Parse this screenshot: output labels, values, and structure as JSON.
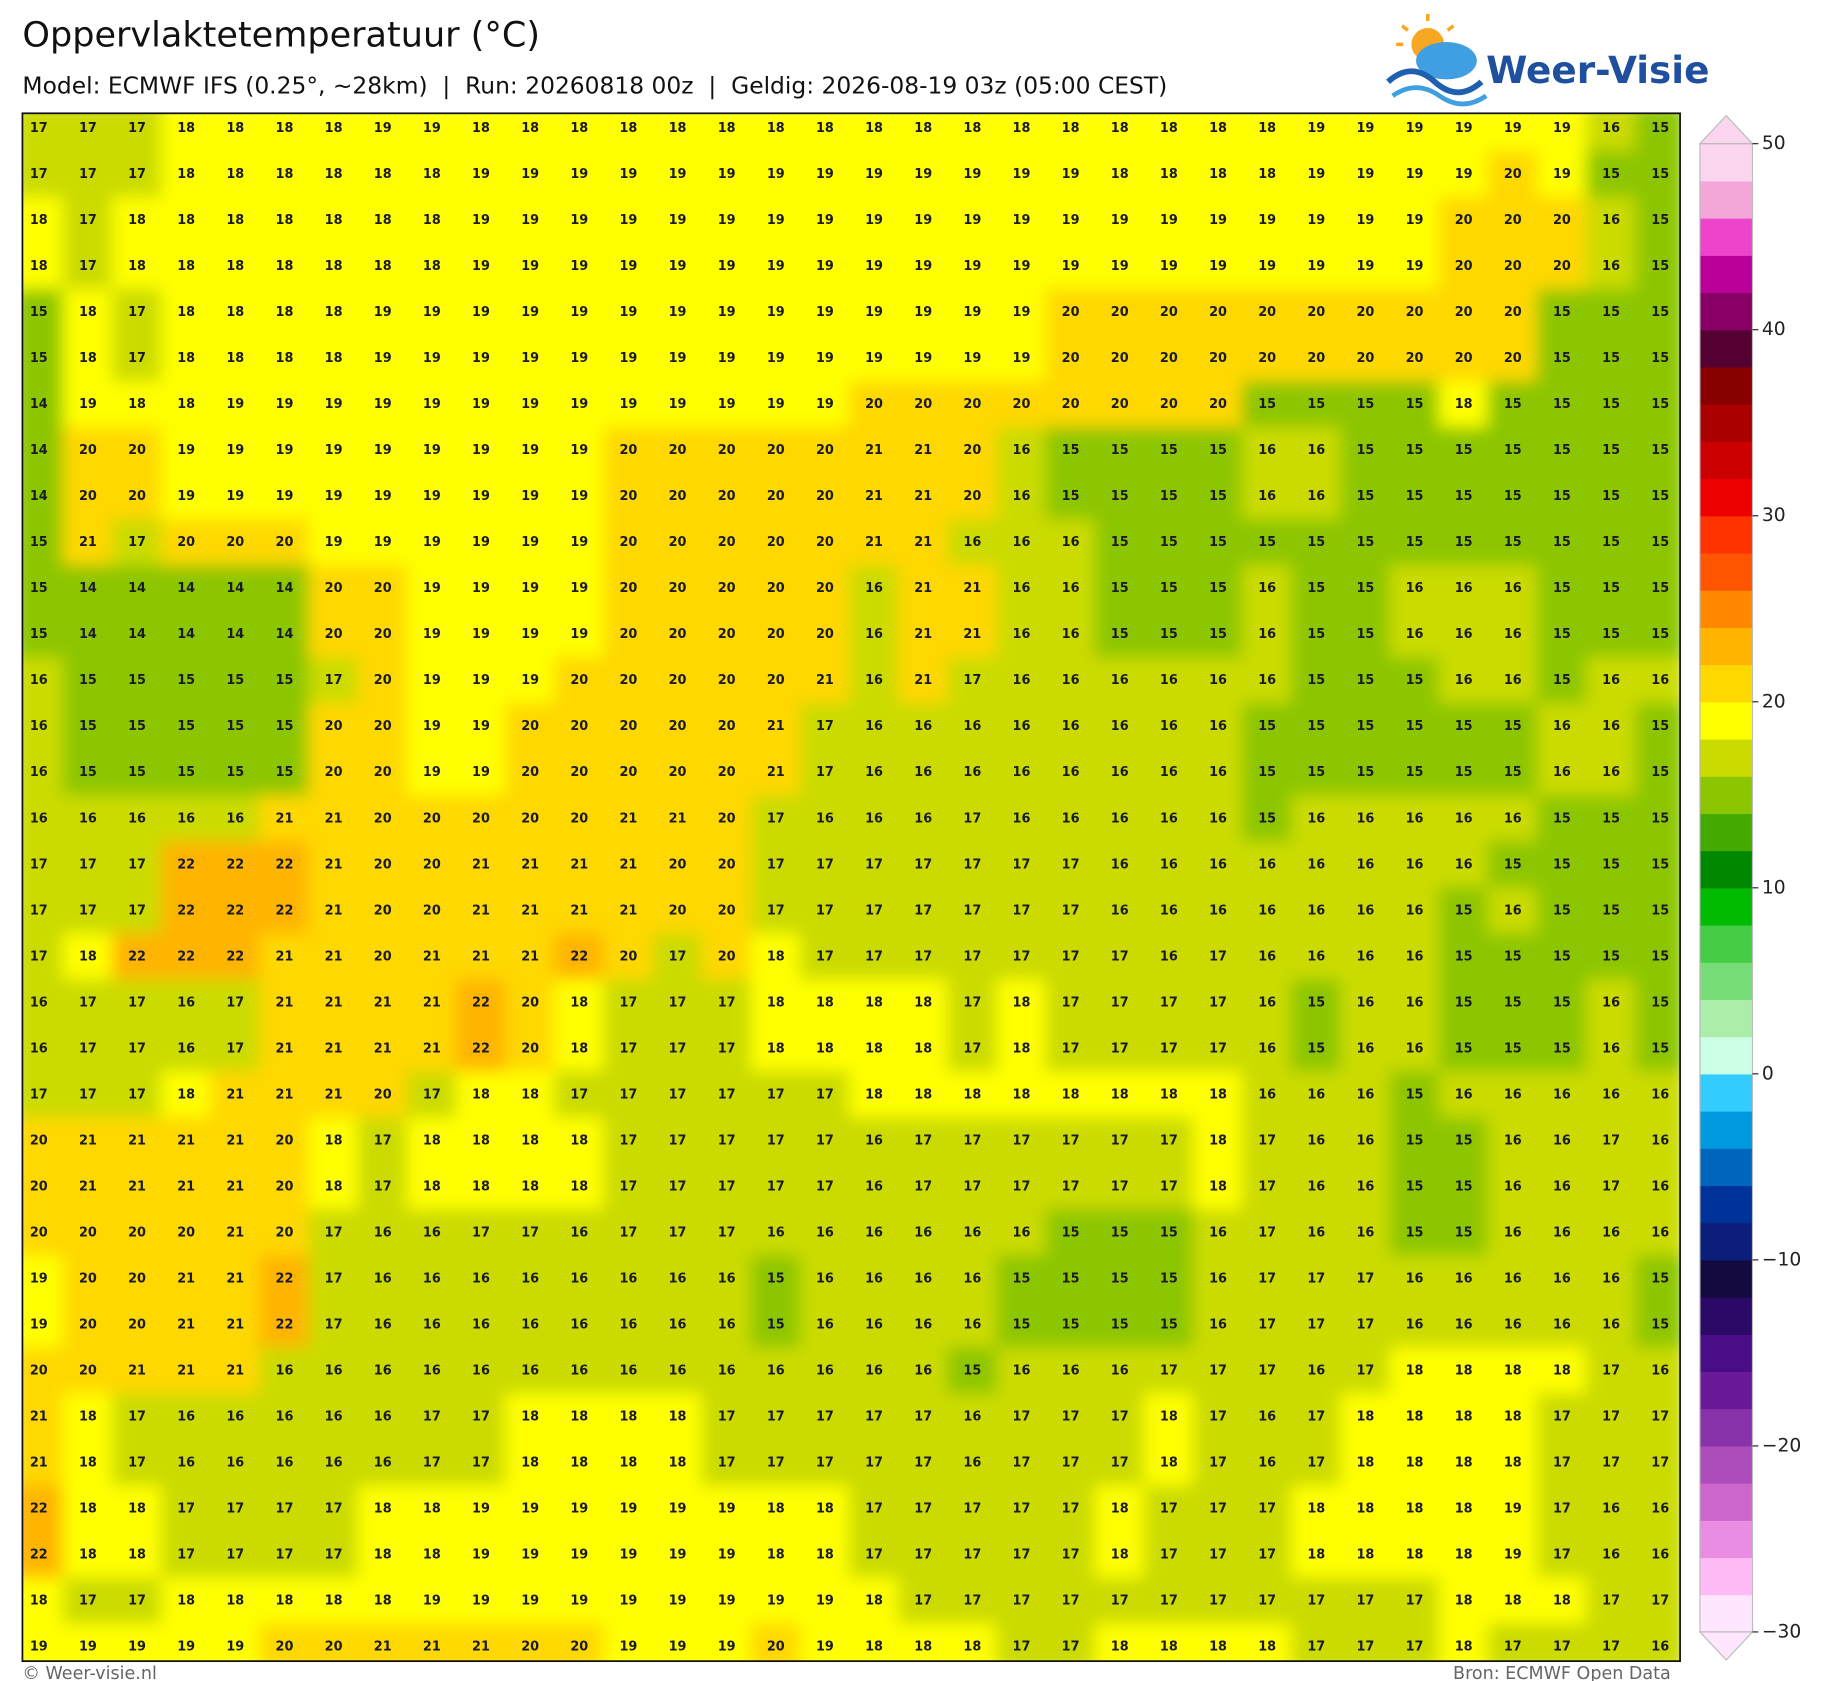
{
  "header": {
    "title": "Oppervlaktetemperatuur (°C)",
    "subtitle": "Model: ECMWF IFS (0.25°, ~28km)  |  Run: 20260818 00z  |  Geldig: 2026-08-19 03z (05:00 CEST)"
  },
  "logo": "Weer-Visie",
  "map": {
    "grid": [
      [
        17,
        17,
        17,
        18,
        18,
        18,
        18,
        19,
        19,
        18,
        18,
        18,
        18,
        18,
        18,
        18,
        18,
        18,
        18,
        18,
        18,
        18,
        18,
        18,
        18,
        18,
        19,
        19,
        19,
        19,
        19,
        19,
        16,
        15
      ],
      [
        17,
        17,
        17,
        18,
        18,
        18,
        18,
        18,
        18,
        19,
        19,
        19,
        19,
        19,
        19,
        19,
        19,
        19,
        19,
        19,
        19,
        19,
        18,
        18,
        18,
        18,
        19,
        19,
        19,
        19,
        20,
        19,
        15,
        15
      ],
      [
        18,
        17,
        18,
        18,
        18,
        18,
        18,
        18,
        18,
        19,
        19,
        19,
        19,
        19,
        19,
        19,
        19,
        19,
        19,
        19,
        19,
        19,
        19,
        19,
        19,
        19,
        19,
        19,
        19,
        20,
        20,
        20,
        16,
        15
      ],
      [
        18,
        17,
        18,
        18,
        18,
        18,
        18,
        18,
        18,
        19,
        19,
        19,
        19,
        19,
        19,
        19,
        19,
        19,
        19,
        19,
        19,
        19,
        19,
        19,
        19,
        19,
        19,
        19,
        19,
        20,
        20,
        20,
        16,
        15
      ],
      [
        15,
        18,
        17,
        18,
        18,
        18,
        18,
        19,
        19,
        19,
        19,
        19,
        19,
        19,
        19,
        19,
        19,
        19,
        19,
        19,
        19,
        20,
        20,
        20,
        20,
        20,
        20,
        20,
        20,
        20,
        20,
        15,
        15,
        15
      ],
      [
        15,
        18,
        17,
        18,
        18,
        18,
        18,
        19,
        19,
        19,
        19,
        19,
        19,
        19,
        19,
        19,
        19,
        19,
        19,
        19,
        19,
        20,
        20,
        20,
        20,
        20,
        20,
        20,
        20,
        20,
        20,
        15,
        15,
        15
      ],
      [
        14,
        19,
        18,
        18,
        19,
        19,
        19,
        19,
        19,
        19,
        19,
        19,
        19,
        19,
        19,
        19,
        19,
        20,
        20,
        20,
        20,
        20,
        20,
        20,
        20,
        15,
        15,
        15,
        15,
        18,
        15,
        15,
        15,
        15
      ],
      [
        14,
        20,
        20,
        19,
        19,
        19,
        19,
        19,
        19,
        19,
        19,
        19,
        20,
        20,
        20,
        20,
        20,
        21,
        21,
        20,
        16,
        15,
        15,
        15,
        15,
        16,
        16,
        15,
        15,
        15,
        15,
        15,
        15,
        15
      ],
      [
        14,
        20,
        20,
        19,
        19,
        19,
        19,
        19,
        19,
        19,
        19,
        19,
        20,
        20,
        20,
        20,
        20,
        21,
        21,
        20,
        16,
        15,
        15,
        15,
        15,
        16,
        16,
        15,
        15,
        15,
        15,
        15,
        15,
        15
      ],
      [
        15,
        21,
        17,
        20,
        20,
        20,
        19,
        19,
        19,
        19,
        19,
        19,
        20,
        20,
        20,
        20,
        20,
        21,
        21,
        16,
        16,
        16,
        15,
        15,
        15,
        15,
        15,
        15,
        15,
        15,
        15,
        15,
        15,
        15
      ],
      [
        15,
        14,
        14,
        14,
        14,
        14,
        20,
        20,
        19,
        19,
        19,
        19,
        20,
        20,
        20,
        20,
        20,
        16,
        21,
        21,
        16,
        16,
        15,
        15,
        15,
        16,
        15,
        15,
        16,
        16,
        16,
        15,
        15,
        15
      ],
      [
        15,
        14,
        14,
        14,
        14,
        14,
        20,
        20,
        19,
        19,
        19,
        19,
        20,
        20,
        20,
        20,
        20,
        16,
        21,
        21,
        16,
        16,
        15,
        15,
        15,
        16,
        15,
        15,
        16,
        16,
        16,
        15,
        15,
        15
      ],
      [
        16,
        15,
        15,
        15,
        15,
        15,
        17,
        20,
        19,
        19,
        19,
        20,
        20,
        20,
        20,
        20,
        21,
        16,
        21,
        17,
        16,
        16,
        16,
        16,
        16,
        16,
        15,
        15,
        15,
        16,
        16,
        15,
        16,
        16
      ],
      [
        16,
        15,
        15,
        15,
        15,
        15,
        20,
        20,
        19,
        19,
        20,
        20,
        20,
        20,
        20,
        21,
        17,
        16,
        16,
        16,
        16,
        16,
        16,
        16,
        16,
        15,
        15,
        15,
        15,
        15,
        15,
        16,
        16,
        15
      ],
      [
        16,
        15,
        15,
        15,
        15,
        15,
        20,
        20,
        19,
        19,
        20,
        20,
        20,
        20,
        20,
        21,
        17,
        16,
        16,
        16,
        16,
        16,
        16,
        16,
        16,
        15,
        15,
        15,
        15,
        15,
        15,
        16,
        16,
        15
      ],
      [
        16,
        16,
        16,
        16,
        16,
        21,
        21,
        20,
        20,
        20,
        20,
        20,
        21,
        21,
        20,
        17,
        16,
        16,
        16,
        17,
        16,
        16,
        16,
        16,
        16,
        15,
        16,
        16,
        16,
        16,
        16,
        15,
        15,
        15
      ],
      [
        17,
        17,
        17,
        22,
        22,
        22,
        21,
        20,
        20,
        21,
        21,
        21,
        21,
        20,
        20,
        17,
        17,
        17,
        17,
        17,
        17,
        17,
        16,
        16,
        16,
        16,
        16,
        16,
        16,
        16,
        15,
        15,
        15,
        15
      ],
      [
        17,
        17,
        17,
        22,
        22,
        22,
        21,
        20,
        20,
        21,
        21,
        21,
        21,
        20,
        20,
        17,
        17,
        17,
        17,
        17,
        17,
        17,
        16,
        16,
        16,
        16,
        16,
        16,
        16,
        15,
        16,
        15,
        15,
        15
      ],
      [
        17,
        18,
        22,
        22,
        22,
        21,
        21,
        20,
        21,
        21,
        21,
        22,
        20,
        17,
        20,
        18,
        17,
        17,
        17,
        17,
        17,
        17,
        17,
        16,
        17,
        16,
        16,
        16,
        16,
        15,
        15,
        15,
        15,
        15
      ],
      [
        16,
        17,
        17,
        16,
        17,
        21,
        21,
        21,
        21,
        22,
        20,
        18,
        17,
        17,
        17,
        18,
        18,
        18,
        18,
        17,
        18,
        17,
        17,
        17,
        17,
        16,
        15,
        16,
        16,
        15,
        15,
        15,
        16,
        15
      ],
      [
        16,
        17,
        17,
        16,
        17,
        21,
        21,
        21,
        21,
        22,
        20,
        18,
        17,
        17,
        17,
        18,
        18,
        18,
        18,
        17,
        18,
        17,
        17,
        17,
        17,
        16,
        15,
        16,
        16,
        15,
        15,
        15,
        16,
        15
      ],
      [
        17,
        17,
        17,
        18,
        21,
        21,
        21,
        20,
        17,
        18,
        18,
        17,
        17,
        17,
        17,
        17,
        17,
        18,
        18,
        18,
        18,
        18,
        18,
        18,
        18,
        16,
        16,
        16,
        15,
        16,
        16,
        16,
        16,
        16
      ],
      [
        20,
        21,
        21,
        21,
        21,
        20,
        18,
        17,
        18,
        18,
        18,
        18,
        17,
        17,
        17,
        17,
        17,
        16,
        17,
        17,
        17,
        17,
        17,
        17,
        18,
        17,
        16,
        16,
        15,
        15,
        16,
        16,
        17,
        16
      ],
      [
        20,
        21,
        21,
        21,
        21,
        20,
        18,
        17,
        18,
        18,
        18,
        18,
        17,
        17,
        17,
        17,
        17,
        16,
        17,
        17,
        17,
        17,
        17,
        17,
        18,
        17,
        16,
        16,
        15,
        15,
        16,
        16,
        17,
        16
      ],
      [
        20,
        20,
        20,
        20,
        21,
        20,
        17,
        16,
        16,
        17,
        17,
        16,
        17,
        17,
        17,
        16,
        16,
        16,
        16,
        16,
        16,
        15,
        15,
        15,
        16,
        17,
        16,
        16,
        15,
        15,
        16,
        16,
        16,
        16
      ],
      [
        19,
        20,
        20,
        21,
        21,
        22,
        17,
        16,
        16,
        16,
        16,
        16,
        16,
        16,
        16,
        15,
        16,
        16,
        16,
        16,
        15,
        15,
        15,
        15,
        16,
        17,
        17,
        17,
        16,
        16,
        16,
        16,
        16,
        15
      ],
      [
        19,
        20,
        20,
        21,
        21,
        22,
        17,
        16,
        16,
        16,
        16,
        16,
        16,
        16,
        16,
        15,
        16,
        16,
        16,
        16,
        15,
        15,
        15,
        15,
        16,
        17,
        17,
        17,
        16,
        16,
        16,
        16,
        16,
        15
      ],
      [
        20,
        20,
        21,
        21,
        21,
        16,
        16,
        16,
        16,
        16,
        16,
        16,
        16,
        16,
        16,
        16,
        16,
        16,
        16,
        15,
        16,
        16,
        16,
        17,
        17,
        17,
        16,
        17,
        18,
        18,
        18,
        18,
        17,
        16
      ],
      [
        21,
        18,
        17,
        16,
        16,
        16,
        16,
        16,
        17,
        17,
        18,
        18,
        18,
        18,
        17,
        17,
        17,
        17,
        17,
        16,
        17,
        17,
        17,
        18,
        17,
        16,
        17,
        18,
        18,
        18,
        18,
        17,
        17,
        17
      ],
      [
        21,
        18,
        17,
        16,
        16,
        16,
        16,
        16,
        17,
        17,
        18,
        18,
        18,
        18,
        17,
        17,
        17,
        17,
        17,
        16,
        17,
        17,
        17,
        18,
        17,
        16,
        17,
        18,
        18,
        18,
        18,
        17,
        17,
        17
      ],
      [
        22,
        18,
        18,
        17,
        17,
        17,
        17,
        18,
        18,
        19,
        19,
        19,
        19,
        19,
        19,
        18,
        18,
        17,
        17,
        17,
        17,
        17,
        18,
        17,
        17,
        17,
        18,
        18,
        18,
        18,
        19,
        17,
        16,
        16
      ],
      [
        22,
        18,
        18,
        17,
        17,
        17,
        17,
        18,
        18,
        19,
        19,
        19,
        19,
        19,
        19,
        18,
        18,
        17,
        17,
        17,
        17,
        17,
        18,
        17,
        17,
        17,
        18,
        18,
        18,
        18,
        19,
        17,
        16,
        16
      ],
      [
        18,
        17,
        17,
        18,
        18,
        18,
        18,
        18,
        19,
        19,
        19,
        19,
        19,
        19,
        19,
        19,
        19,
        18,
        17,
        17,
        17,
        17,
        17,
        17,
        17,
        17,
        17,
        17,
        17,
        18,
        18,
        18,
        17,
        17
      ],
      [
        19,
        19,
        19,
        19,
        19,
        20,
        20,
        21,
        21,
        21,
        20,
        20,
        19,
        19,
        19,
        20,
        19,
        18,
        18,
        18,
        17,
        17,
        18,
        18,
        18,
        18,
        17,
        17,
        17,
        18,
        17,
        17,
        17,
        16
      ]
    ],
    "colorbar": {
      "lim": [
        -30,
        50
      ],
      "colors": [
        "#ffe6ff",
        "#ffbbf5",
        "#e98de3",
        "#cc66cc",
        "#ad4dbb",
        "#8833aa",
        "#6a1a99",
        "#4a0d88",
        "#2a0a66",
        "#150a40",
        "#0b1f7a",
        "#003399",
        "#0066bb",
        "#0099dd",
        "#33ccff",
        "#ccffe6",
        "#aaeeaa",
        "#77dd77",
        "#44cc44",
        "#00bb00",
        "#008800",
        "#44aa00",
        "#8cc600",
        "#cbdb00",
        "#ffff00",
        "#ffd800",
        "#ffb400",
        "#ff8800",
        "#ff5500",
        "#ff3300",
        "#ee0000",
        "#cc0000",
        "#aa0000",
        "#880000",
        "#550033",
        "#880066",
        "#bb0099",
        "#ee44cc",
        "#f5a6d9",
        "#fcd6ee"
      ],
      "ticks": [
        {
          "value": -30,
          "label": "−30"
        },
        {
          "value": -20,
          "label": "−20"
        },
        {
          "value": -10,
          "label": "−10"
        },
        0,
        10,
        20,
        30,
        40,
        50
      ]
    }
  },
  "footer": {
    "left": "© Weer-visie.nl",
    "right": "Bron: ECMWF Open Data"
  }
}
